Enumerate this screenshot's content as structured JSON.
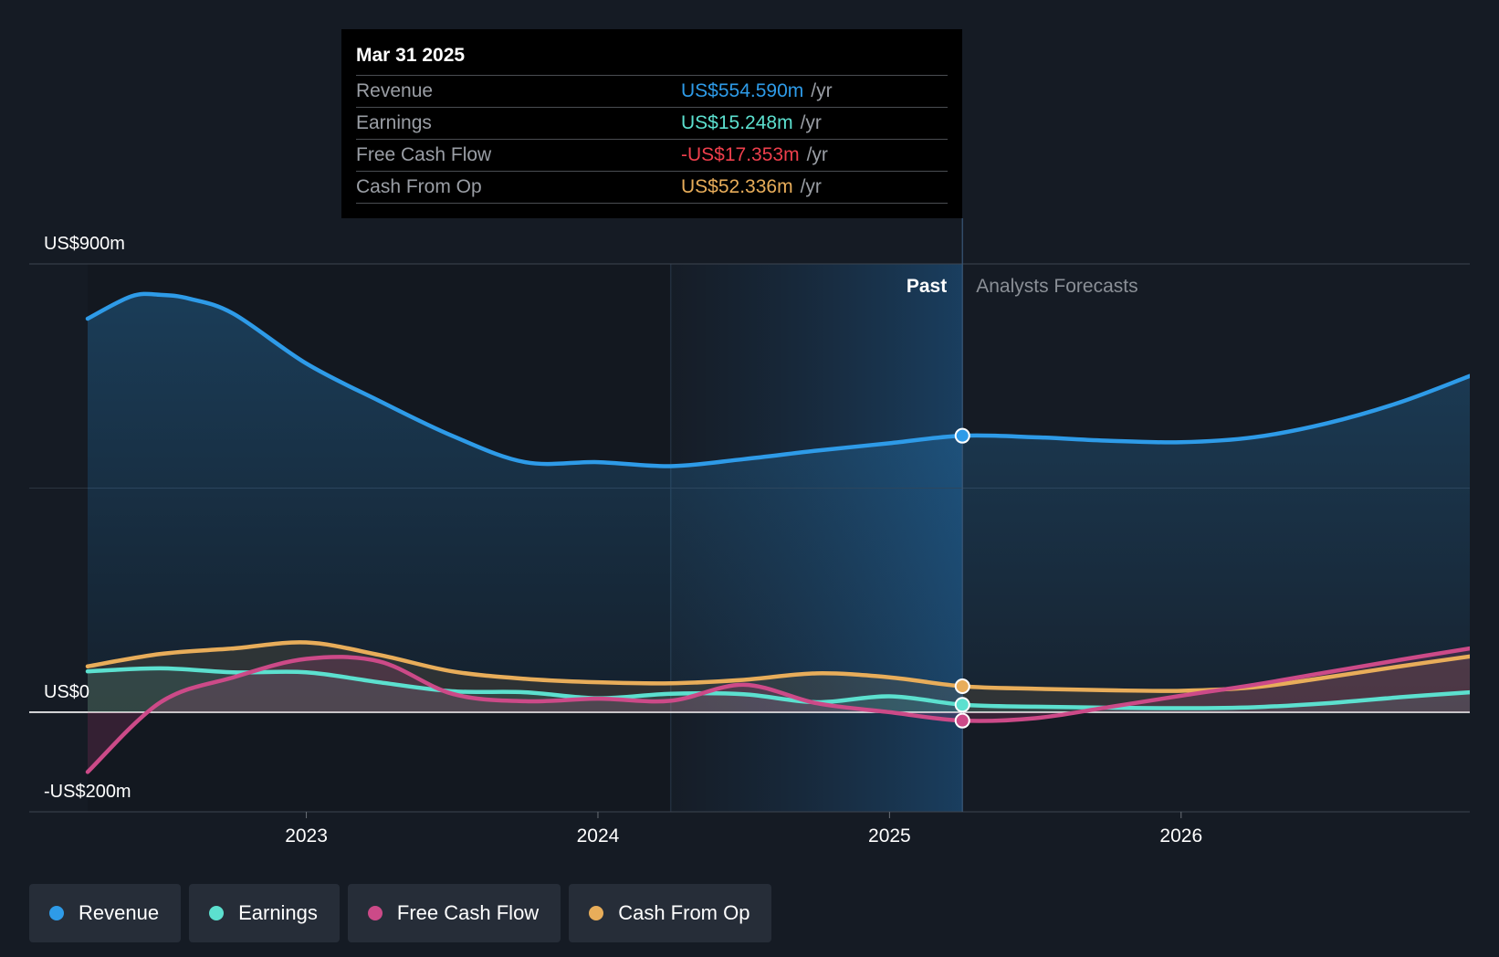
{
  "colors": {
    "revenue": "#2e9be8",
    "earnings": "#5ce0cf",
    "free_cash_flow": "#cc4a88",
    "cash_from_op": "#e8ad5a",
    "negative": "#ee3f4c"
  },
  "tooltip": {
    "date": "Mar 31 2025",
    "rows": [
      {
        "label": "Revenue",
        "value": "US$554.590m",
        "unit": "/yr"
      },
      {
        "label": "Earnings",
        "value": "US$15.248m",
        "unit": "/yr"
      },
      {
        "label": "Free Cash Flow",
        "value": "-US$17.353m",
        "unit": "/yr"
      },
      {
        "label": "Cash From Op",
        "value": "US$52.336m",
        "unit": "/yr"
      }
    ]
  },
  "chart_data": {
    "type": "line",
    "title": "",
    "y_axis_labels": [
      "US$900m",
      "US$0",
      "-US$200m"
    ],
    "ylim": [
      -200,
      900
    ],
    "xlim": [
      2022.25,
      2026.99
    ],
    "x_ticks": [
      2023,
      2024,
      2025,
      2026
    ],
    "x_tick_labels": [
      "2023",
      "2024",
      "2025",
      "2026"
    ],
    "past_label": "Past",
    "forecast_label": "Analysts Forecasts",
    "past_start": 2024.25,
    "forecast_start": 2025.25,
    "series": [
      {
        "name": "Revenue",
        "x": [
          2022.25,
          2022.4,
          2022.5,
          2022.6,
          2022.75,
          2023.0,
          2023.25,
          2023.5,
          2023.75,
          2024.0,
          2024.25,
          2024.5,
          2024.75,
          2025.0,
          2025.25,
          2025.5,
          2025.75,
          2026.0,
          2026.25,
          2026.5,
          2026.75,
          2026.99
        ],
        "y": [
          790,
          835,
          838,
          830,
          800,
          700,
          625,
          555,
          502,
          502,
          494,
          508,
          525,
          540,
          555,
          552,
          545,
          542,
          552,
          580,
          622,
          675
        ]
      },
      {
        "name": "Earnings",
        "x": [
          2022.25,
          2022.5,
          2022.75,
          2023.0,
          2023.25,
          2023.5,
          2023.75,
          2024.0,
          2024.25,
          2024.5,
          2024.75,
          2025.0,
          2025.25,
          2025.5,
          2025.75,
          2026.0,
          2026.25,
          2026.5,
          2026.75,
          2026.99
        ],
        "y": [
          82,
          88,
          80,
          80,
          60,
          42,
          40,
          28,
          37,
          36,
          20,
          32,
          15,
          11,
          9,
          8,
          10,
          18,
          30,
          40
        ]
      },
      {
        "name": "Free Cash Flow",
        "x": [
          2022.25,
          2022.5,
          2022.75,
          2023.0,
          2023.25,
          2023.5,
          2023.75,
          2024.0,
          2024.25,
          2024.5,
          2024.75,
          2025.0,
          2025.25,
          2025.5,
          2025.75,
          2026.0,
          2026.25,
          2026.5,
          2026.75,
          2026.99
        ],
        "y": [
          -120,
          20,
          70,
          107,
          102,
          37,
          22,
          27,
          23,
          55,
          18,
          0,
          -17,
          -12,
          10,
          33,
          55,
          80,
          105,
          128
        ]
      },
      {
        "name": "Cash From Op",
        "x": [
          2022.25,
          2022.5,
          2022.75,
          2023.0,
          2023.25,
          2023.5,
          2023.75,
          2024.0,
          2024.25,
          2024.5,
          2024.75,
          2025.0,
          2025.25,
          2025.5,
          2025.75,
          2026.0,
          2026.25,
          2026.5,
          2026.75,
          2026.99
        ],
        "y": [
          92,
          117,
          128,
          140,
          115,
          82,
          67,
          60,
          58,
          65,
          78,
          70,
          52,
          47,
          44,
          43,
          50,
          70,
          92,
          112
        ]
      }
    ]
  },
  "legend": [
    {
      "label": "Revenue",
      "key": "revenue"
    },
    {
      "label": "Earnings",
      "key": "earnings"
    },
    {
      "label": "Free Cash Flow",
      "key": "free_cash_flow"
    },
    {
      "label": "Cash From Op",
      "key": "cash_from_op"
    }
  ]
}
